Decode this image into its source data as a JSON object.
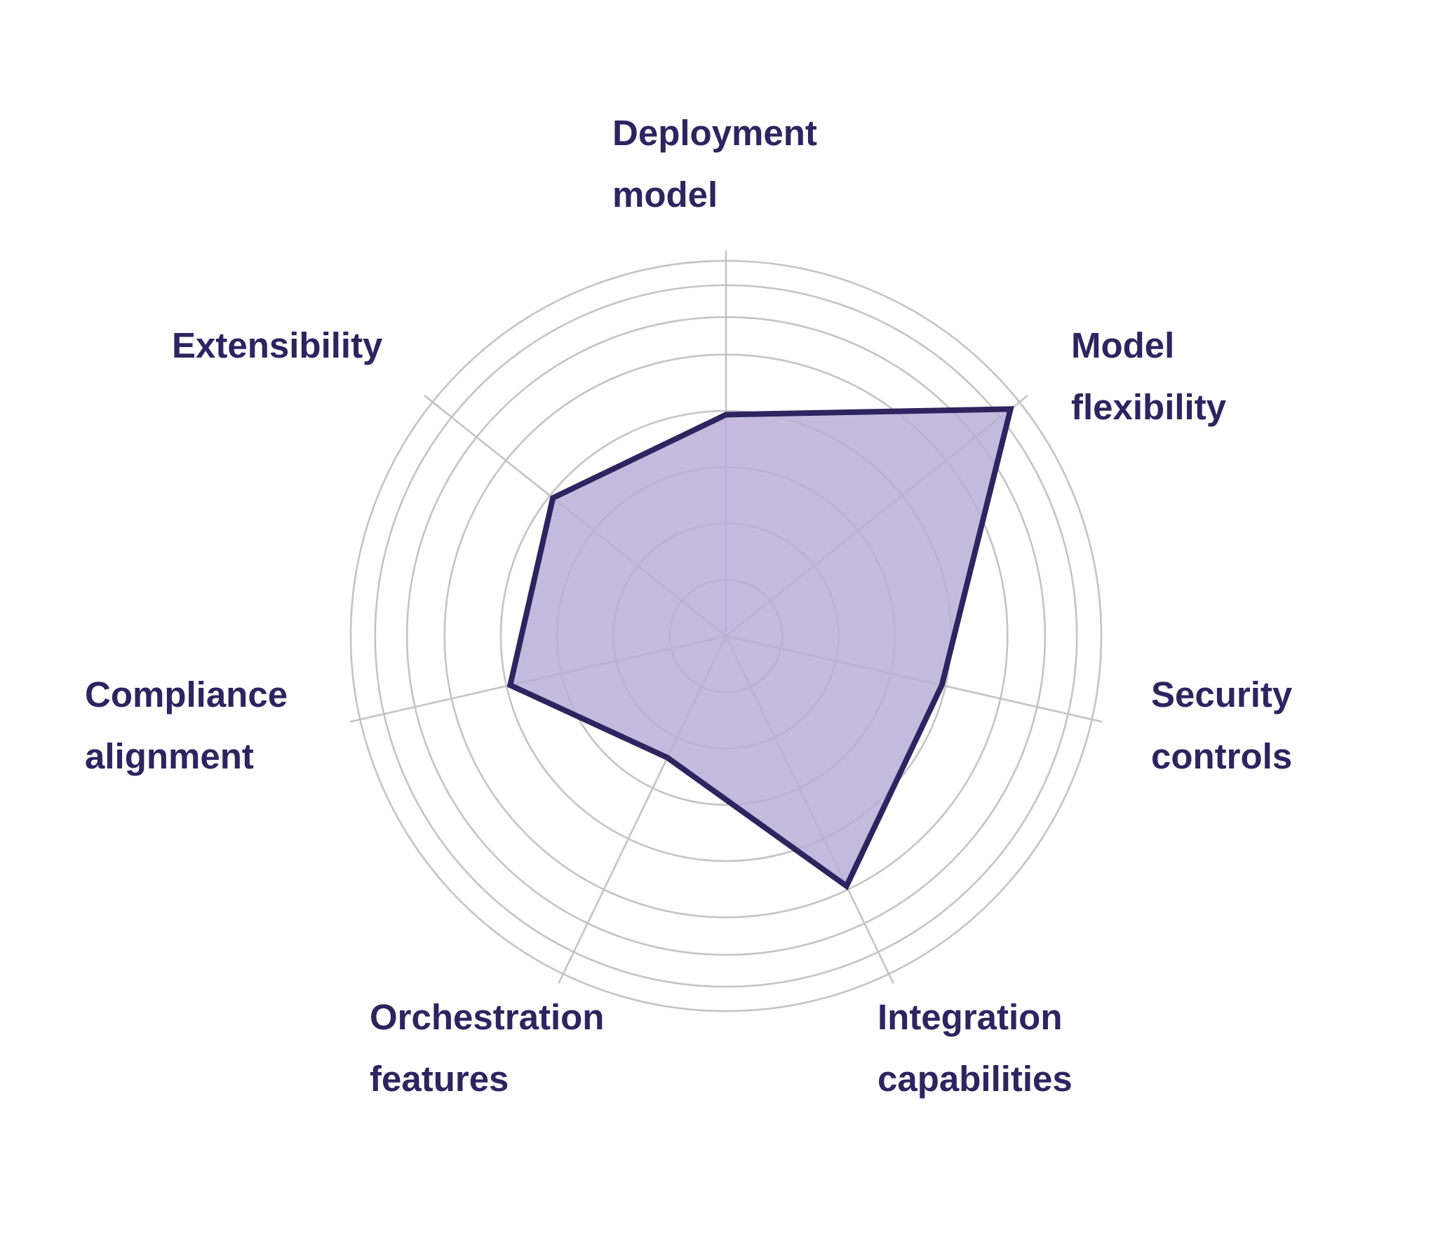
{
  "chart_data": {
    "type": "radar",
    "title": "",
    "axes": [
      "Deployment model",
      "Model flexibility",
      "Security controls",
      "Integration capabilities",
      "Orchestration features",
      "Compliance alignment",
      "Extensibility"
    ],
    "axis_label_lines": [
      [
        "Deployment",
        "model"
      ],
      [
        "Model",
        "flexibility"
      ],
      [
        "Security",
        "controls"
      ],
      [
        "Integration",
        "capabilities"
      ],
      [
        "Orchestration",
        "features"
      ],
      [
        "Compliance",
        "alignment"
      ],
      [
        "Extensibility"
      ]
    ],
    "series": [
      {
        "values": [
          0.59,
          0.97,
          0.59,
          0.74,
          0.36,
          0.59,
          0.59
        ]
      }
    ],
    "rlim": [
      0,
      1
    ],
    "grid": true,
    "legend": false,
    "colors": {
      "fill": "#b9aed8",
      "stroke": "#2e2460",
      "grid": "#c4c4c4",
      "label": "#2e2460"
    }
  }
}
